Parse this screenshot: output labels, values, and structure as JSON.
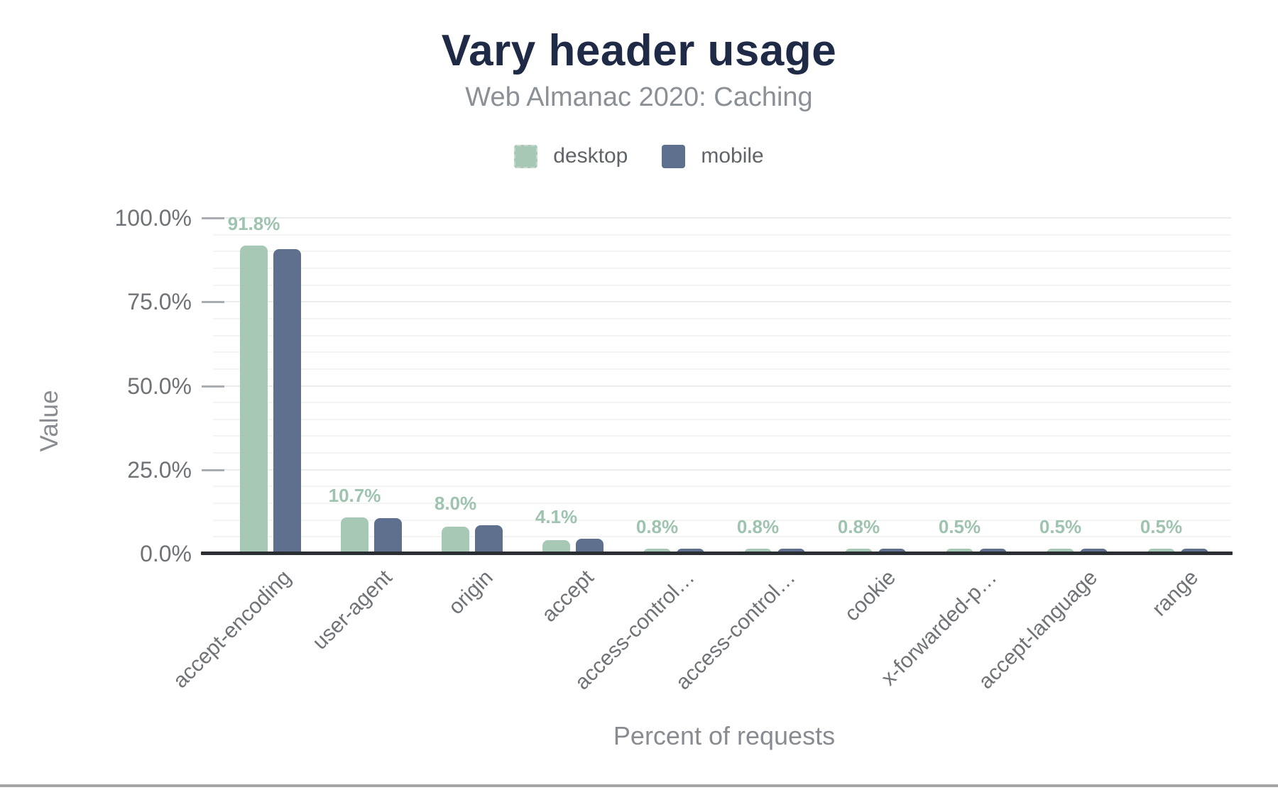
{
  "title": "Vary header usage",
  "subtitle": "Web Almanac 2020: Caching",
  "legend": [
    {
      "label": "desktop",
      "color": "#a6c8b5",
      "swatch_border": "#c9d9cf"
    },
    {
      "label": "mobile",
      "color": "#5e708e",
      "swatch_border": ""
    }
  ],
  "y_axis": {
    "title": "Value",
    "ticks": [
      0,
      25,
      50,
      75,
      100
    ],
    "tick_labels": [
      "0.0%",
      "25.0%",
      "50.0%",
      "75.0%",
      "100.0%"
    ],
    "minor_step_percent": 5
  },
  "x_axis": {
    "title": "Percent of requests"
  },
  "chart_data": {
    "type": "bar",
    "title": "Vary header usage",
    "subtitle": "Web Almanac 2020: Caching",
    "categories": [
      "accept-encoding",
      "user-agent",
      "origin",
      "accept",
      "access-control…",
      "access-control…",
      "cookie",
      "x-forwarded-p…",
      "accept-language",
      "range"
    ],
    "series": [
      {
        "name": "desktop",
        "color": "#a6c8b5",
        "values": [
          91.8,
          10.7,
          8.0,
          4.1,
          0.8,
          0.8,
          0.8,
          0.5,
          0.5,
          0.5
        ]
      },
      {
        "name": "mobile",
        "color": "#5e708e",
        "values": [
          90.8,
          10.6,
          8.4,
          4.4,
          0.9,
          0.9,
          0.9,
          0.7,
          0.7,
          0.7
        ]
      }
    ],
    "mobile_values_estimated": true,
    "data_labels": [
      "91.8%",
      "10.7%",
      "8.0%",
      "4.1%",
      "0.8%",
      "0.8%",
      "0.8%",
      "0.5%",
      "0.5%",
      "0.5%"
    ],
    "xlabel": "Percent of requests",
    "ylabel": "Value",
    "ylim": [
      0,
      100
    ],
    "grid": "horizontal, minor lines every 5%",
    "legend_position": "top"
  },
  "colors": {
    "title": "#1e2a46",
    "subtitle": "#8b9097",
    "axis_text": "#6f7377",
    "axis_title": "#888c91",
    "data_label": "#9ec3ae",
    "axis_line": "#2b2e33",
    "gridline": "#f3f5f3",
    "footer_bar": "#a6a6a6"
  }
}
